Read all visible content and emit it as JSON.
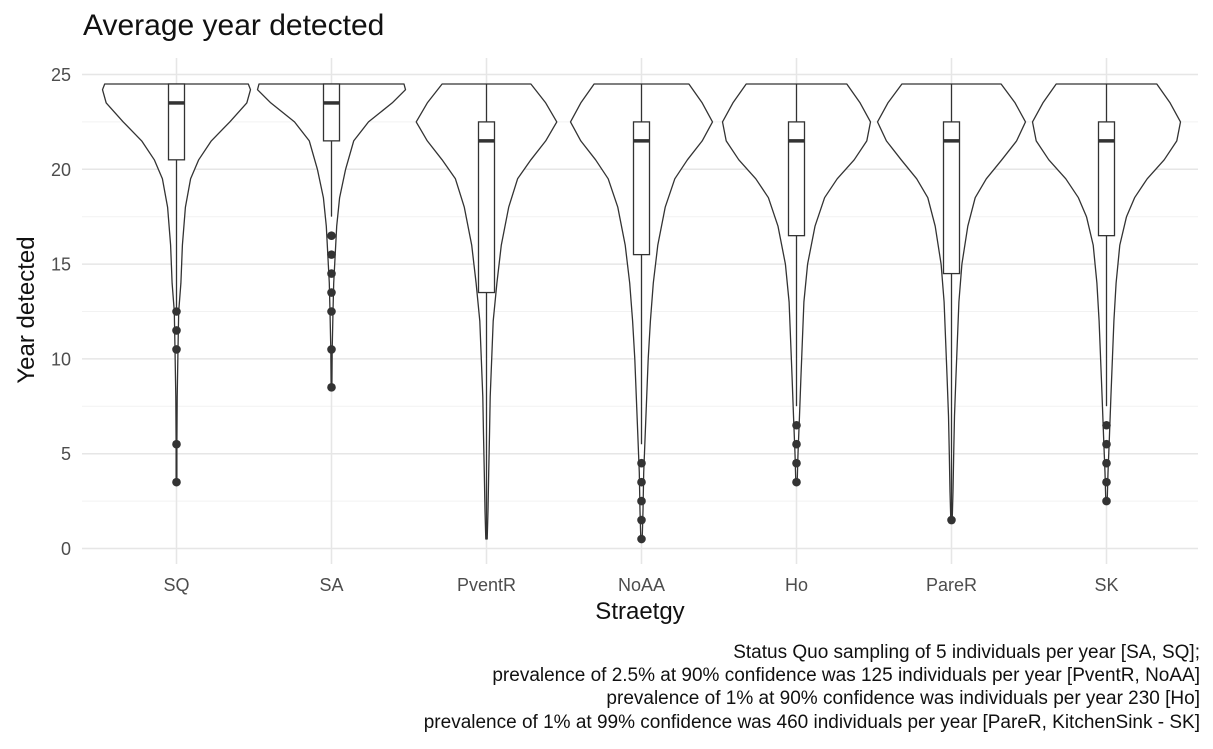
{
  "chart_data": {
    "type": "violin",
    "title": "Average year detected",
    "xlabel": "Straetgy",
    "ylabel": "Year detected",
    "ylim": [
      -0.8,
      25.7
    ],
    "yticks": [
      0,
      5,
      10,
      15,
      20,
      25
    ],
    "grid": true,
    "caption": [
      "Status Quo sampling of 5 individuals per year [SA, SQ];",
      "prevalence of 2.5% at 90% confidence was 125 individuals per year [PventR, NoAA]",
      "prevalence of 1% at 90% confidence was individuals per year 230 [Ho]",
      "prevalence of 1% at 99% confidence was 460 individuals per year [PareR, KitchenSink - SK]"
    ],
    "categories": [
      "SQ",
      "SA",
      "PventR",
      "NoAA",
      "Ho",
      "PareR",
      "SK"
    ],
    "boxes": [
      {
        "name": "SQ",
        "min": 12.5,
        "q1": 20.5,
        "median": 23.5,
        "q3": 24.5,
        "max": 24.5,
        "outliers": [
          3.5,
          5.5,
          10.5,
          11.5,
          12.5
        ]
      },
      {
        "name": "SA",
        "min": 17.5,
        "q1": 21.5,
        "median": 23.5,
        "q3": 24.5,
        "max": 24.5,
        "outliers": [
          8.5,
          10.5,
          12.5,
          13.5,
          14.5,
          15.5,
          16.5
        ]
      },
      {
        "name": "PventR",
        "min": 0.5,
        "q1": 13.5,
        "median": 21.5,
        "q3": 22.5,
        "max": 24.5,
        "outliers": []
      },
      {
        "name": "NoAA",
        "min": 5.5,
        "q1": 15.5,
        "median": 21.5,
        "q3": 22.5,
        "max": 24.5,
        "outliers": [
          0.5,
          1.5,
          2.5,
          3.5,
          4.5
        ]
      },
      {
        "name": "Ho",
        "min": 7.5,
        "q1": 16.5,
        "median": 21.5,
        "q3": 22.5,
        "max": 24.5,
        "outliers": [
          3.5,
          4.5,
          5.5,
          6.5
        ]
      },
      {
        "name": "PareR",
        "min": 1.5,
        "q1": 14.5,
        "median": 21.5,
        "q3": 22.5,
        "max": 24.5,
        "outliers": [
          1.5
        ]
      },
      {
        "name": "SK",
        "min": 7.5,
        "q1": 16.5,
        "median": 21.5,
        "q3": 22.5,
        "max": 24.5,
        "outliers": [
          2.5,
          3.5,
          4.5,
          5.5,
          6.5
        ]
      }
    ],
    "violins": [
      {
        "name": "SQ",
        "density": [
          [
            3.5,
            0.005
          ],
          [
            5.5,
            0.005
          ],
          [
            8,
            0.01
          ],
          [
            10.5,
            0.02
          ],
          [
            12.5,
            0.03
          ],
          [
            14,
            0.06
          ],
          [
            16,
            0.08
          ],
          [
            18,
            0.12
          ],
          [
            19.5,
            0.19
          ],
          [
            20.5,
            0.3
          ],
          [
            21.5,
            0.47
          ],
          [
            22.5,
            0.72
          ],
          [
            23.5,
            0.95
          ],
          [
            24.2,
            1.0
          ],
          [
            24.5,
            0.97
          ]
        ]
      },
      {
        "name": "SA",
        "density": [
          [
            8.5,
            0.005
          ],
          [
            10.5,
            0.01
          ],
          [
            12.5,
            0.02
          ],
          [
            14,
            0.03
          ],
          [
            15.5,
            0.05
          ],
          [
            17,
            0.07
          ],
          [
            18.5,
            0.11
          ],
          [
            20,
            0.19
          ],
          [
            21.5,
            0.3
          ],
          [
            22.5,
            0.5
          ],
          [
            23.5,
            0.82
          ],
          [
            24.2,
            1.0
          ],
          [
            24.5,
            0.98
          ]
        ]
      },
      {
        "name": "PventR",
        "density": [
          [
            0.5,
            0.01
          ],
          [
            2,
            0.02
          ],
          [
            4,
            0.03
          ],
          [
            6,
            0.04
          ],
          [
            8,
            0.05
          ],
          [
            10,
            0.07
          ],
          [
            12,
            0.09
          ],
          [
            14,
            0.14
          ],
          [
            16,
            0.2
          ],
          [
            18,
            0.3
          ],
          [
            19.5,
            0.42
          ],
          [
            20.5,
            0.6
          ],
          [
            21.5,
            0.8
          ],
          [
            22.5,
            0.95
          ],
          [
            23.5,
            0.8
          ],
          [
            24.5,
            0.6
          ]
        ]
      },
      {
        "name": "NoAA",
        "density": [
          [
            0.5,
            0.01
          ],
          [
            2,
            0.02
          ],
          [
            4,
            0.03
          ],
          [
            6,
            0.05
          ],
          [
            8,
            0.07
          ],
          [
            10,
            0.09
          ],
          [
            12,
            0.12
          ],
          [
            14,
            0.16
          ],
          [
            16,
            0.22
          ],
          [
            18,
            0.32
          ],
          [
            19.5,
            0.45
          ],
          [
            20.5,
            0.62
          ],
          [
            21.5,
            0.82
          ],
          [
            22.5,
            0.96
          ],
          [
            23.5,
            0.82
          ],
          [
            24.5,
            0.64
          ]
        ]
      },
      {
        "name": "Ho",
        "density": [
          [
            3.5,
            0.01
          ],
          [
            5,
            0.02
          ],
          [
            7,
            0.04
          ],
          [
            9,
            0.06
          ],
          [
            11,
            0.08
          ],
          [
            13,
            0.1
          ],
          [
            15,
            0.15
          ],
          [
            17,
            0.25
          ],
          [
            18.5,
            0.38
          ],
          [
            19.5,
            0.55
          ],
          [
            20.5,
            0.78
          ],
          [
            21.5,
            0.95
          ],
          [
            22.5,
            1.0
          ],
          [
            23.5,
            0.86
          ],
          [
            24.5,
            0.68
          ]
        ]
      },
      {
        "name": "PareR",
        "density": [
          [
            1.5,
            0.01
          ],
          [
            3,
            0.02
          ],
          [
            5,
            0.03
          ],
          [
            7,
            0.04
          ],
          [
            9,
            0.06
          ],
          [
            11,
            0.08
          ],
          [
            13,
            0.1
          ],
          [
            15,
            0.14
          ],
          [
            17,
            0.22
          ],
          [
            18.5,
            0.32
          ],
          [
            19.5,
            0.47
          ],
          [
            20.5,
            0.68
          ],
          [
            21.5,
            0.88
          ],
          [
            22.5,
            1.0
          ],
          [
            23.5,
            0.86
          ],
          [
            24.5,
            0.67
          ]
        ]
      },
      {
        "name": "SK",
        "density": [
          [
            2.5,
            0.01
          ],
          [
            4,
            0.02
          ],
          [
            6,
            0.04
          ],
          [
            8,
            0.06
          ],
          [
            10,
            0.08
          ],
          [
            12,
            0.1
          ],
          [
            14,
            0.13
          ],
          [
            16,
            0.18
          ],
          [
            17.5,
            0.27
          ],
          [
            18.5,
            0.38
          ],
          [
            19.5,
            0.55
          ],
          [
            20.5,
            0.78
          ],
          [
            21.5,
            0.95
          ],
          [
            22.5,
            1.0
          ],
          [
            23.5,
            0.86
          ],
          [
            24.5,
            0.68
          ]
        ]
      }
    ]
  }
}
